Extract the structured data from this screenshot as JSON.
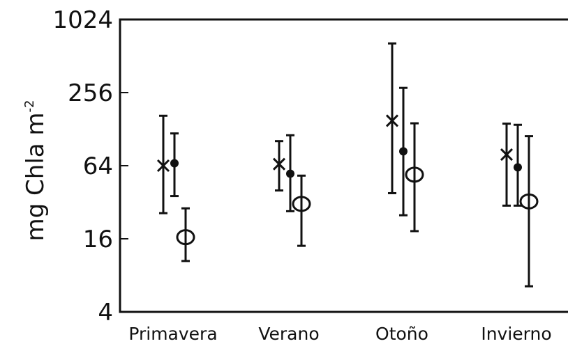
{
  "chart_data": {
    "type": "scatter",
    "subtype": "error-bar",
    "y_scale": "log2",
    "ylabel": "mg Chla m",
    "ylabel_superscript": "-2",
    "ylim": [
      4,
      1024
    ],
    "yticks": [
      4,
      16,
      64,
      256,
      1024
    ],
    "ytick_labels": [
      "4",
      "16",
      "64",
      "256",
      "1024"
    ],
    "categories": [
      "Primavera",
      "Verano",
      "Otoño",
      "Invierno"
    ],
    "grid": false,
    "legend": "none",
    "series": [
      {
        "marker": "x",
        "values": [
          64,
          66,
          150,
          79
        ],
        "lower": [
          26,
          40,
          38,
          30
        ],
        "upper": [
          165,
          102,
          650,
          142
        ]
      },
      {
        "marker": "dot",
        "values": [
          67,
          55,
          84,
          62
        ],
        "lower": [
          36,
          27,
          25,
          30
        ],
        "upper": [
          118,
          114,
          280,
          139
        ]
      },
      {
        "marker": "circle",
        "values": [
          16.5,
          31,
          54,
          32.5
        ],
        "lower": [
          10.5,
          14,
          18.5,
          6.5
        ],
        "upper": [
          28.5,
          53,
          143,
          112
        ]
      }
    ],
    "colors": {
      "marks": "#111111",
      "axes": "#111111",
      "background": "#ffffff"
    }
  }
}
